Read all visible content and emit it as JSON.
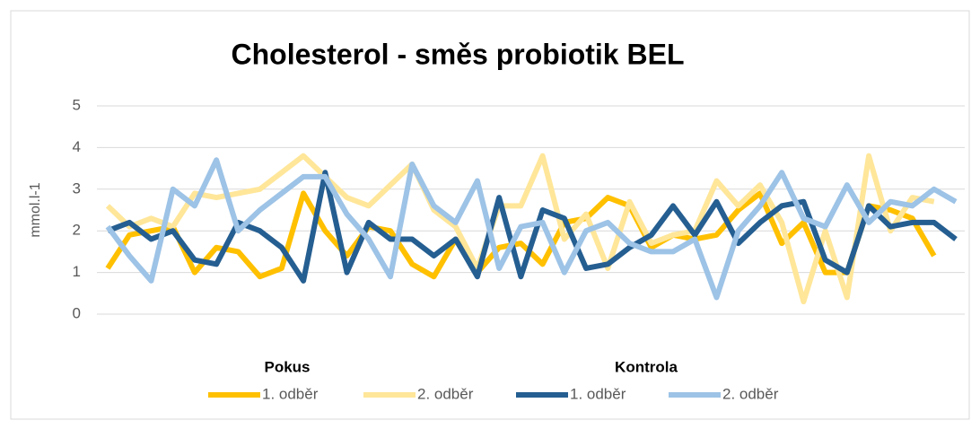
{
  "chart_data": {
    "type": "line",
    "title": "Cholesterol - směs probiotik BEL",
    "y_label": "mmol.l-1",
    "legend_groups": [
      "Pokus",
      "Kontrola"
    ],
    "categories": [
      null,
      null,
      null,
      null,
      null,
      null,
      null,
      null,
      null,
      null,
      null,
      null,
      null,
      null,
      null,
      null,
      null,
      null,
      null,
      null,
      null,
      null,
      null,
      null,
      null,
      null,
      null,
      null,
      null,
      null,
      null,
      null,
      null,
      null,
      null,
      null,
      null,
      null,
      null,
      null
    ],
    "series": [
      {
        "name": "1. odběr",
        "color": "#ffc000",
        "values": [
          1.1,
          1.9,
          2.0,
          2.1,
          1.0,
          1.6,
          1.5,
          0.9,
          1.1,
          2.9,
          2.0,
          1.4,
          2.1,
          2.0,
          1.2,
          0.9,
          1.8,
          1.0,
          1.6,
          1.7,
          1.2,
          2.2,
          2.3,
          2.8,
          2.6,
          1.6,
          1.9,
          1.8,
          1.9,
          2.5,
          2.9,
          1.7,
          2.2,
          1.0,
          1.0,
          2.6,
          2.5,
          2.3,
          1.4,
          null
        ]
      },
      {
        "name": "2. odběr",
        "color": "#ffe699",
        "values": [
          2.6,
          2.1,
          2.3,
          2.1,
          2.9,
          2.8,
          2.9,
          3.0,
          3.4,
          3.8,
          3.3,
          2.8,
          2.6,
          3.1,
          3.6,
          2.5,
          2.1,
          1.1,
          2.6,
          2.6,
          3.8,
          1.8,
          2.4,
          1.1,
          2.7,
          1.7,
          1.9,
          2.0,
          3.2,
          2.6,
          3.1,
          2.2,
          0.3,
          2.0,
          0.4,
          3.8,
          2.0,
          2.8,
          2.7,
          null
        ]
      },
      {
        "name": "1. odběr",
        "color": "#255e91",
        "values": [
          2.0,
          2.2,
          1.8,
          2.0,
          1.3,
          1.2,
          2.2,
          2.0,
          1.6,
          0.8,
          3.4,
          1.0,
          2.2,
          1.8,
          1.8,
          1.4,
          1.8,
          0.9,
          2.8,
          0.9,
          2.5,
          2.3,
          1.1,
          1.2,
          1.6,
          1.9,
          2.6,
          1.9,
          2.7,
          1.7,
          2.2,
          2.6,
          2.7,
          1.3,
          1.0,
          2.6,
          2.1,
          2.2,
          2.2,
          1.8
        ]
      },
      {
        "name": "2. odběr",
        "color": "#9dc3e6",
        "values": [
          2.1,
          1.4,
          0.8,
          3.0,
          2.6,
          3.7,
          2.0,
          2.5,
          2.9,
          3.3,
          3.3,
          2.4,
          1.8,
          0.9,
          3.6,
          2.6,
          2.2,
          3.2,
          1.1,
          2.1,
          2.2,
          1.0,
          2.0,
          2.2,
          1.7,
          1.5,
          1.5,
          1.8,
          0.4,
          2.0,
          2.6,
          3.4,
          2.3,
          2.1,
          3.1,
          2.2,
          2.7,
          2.6,
          3.0,
          2.7
        ]
      }
    ],
    "ylim": [
      0,
      5
    ],
    "yticks": [
      0,
      1,
      2,
      3,
      4,
      5
    ],
    "grid": true
  }
}
